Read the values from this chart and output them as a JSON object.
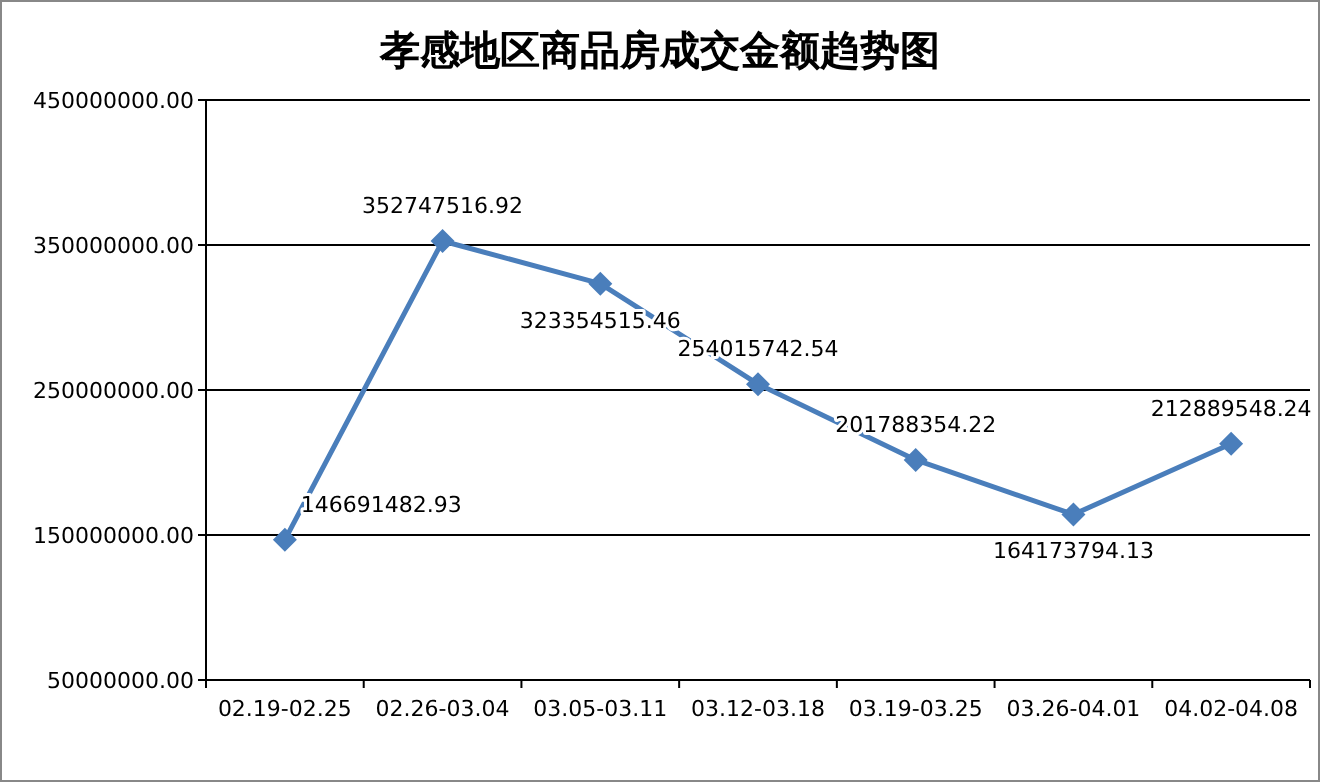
{
  "chart_data": {
    "type": "line",
    "title": "孝感地区商品房成交金额趋势图",
    "categories": [
      "02.19-02.25",
      "02.26-03.04",
      "03.05-03.11",
      "03.12-03.18",
      "03.19-03.25",
      "03.26-04.01",
      "04.02-04.08"
    ],
    "series": [
      {
        "color": "#4a7ebb",
        "values": [
          146691482.93,
          352747516.92,
          323354515.46,
          254015742.54,
          201788354.22,
          164173794.13,
          212889548.24
        ]
      }
    ],
    "ylim": [
      50000000,
      450000000
    ],
    "yticks": [
      {
        "value": 50000000,
        "label": "50000000.00"
      },
      {
        "value": 150000000,
        "label": "150000000.00"
      },
      {
        "value": 250000000,
        "label": "250000000.00"
      },
      {
        "value": 350000000,
        "label": "350000000.00"
      },
      {
        "value": 450000000,
        "label": "450000000.00"
      }
    ],
    "grid": "y",
    "marker": "diamond",
    "line_style": "solid",
    "data_labels": true
  }
}
